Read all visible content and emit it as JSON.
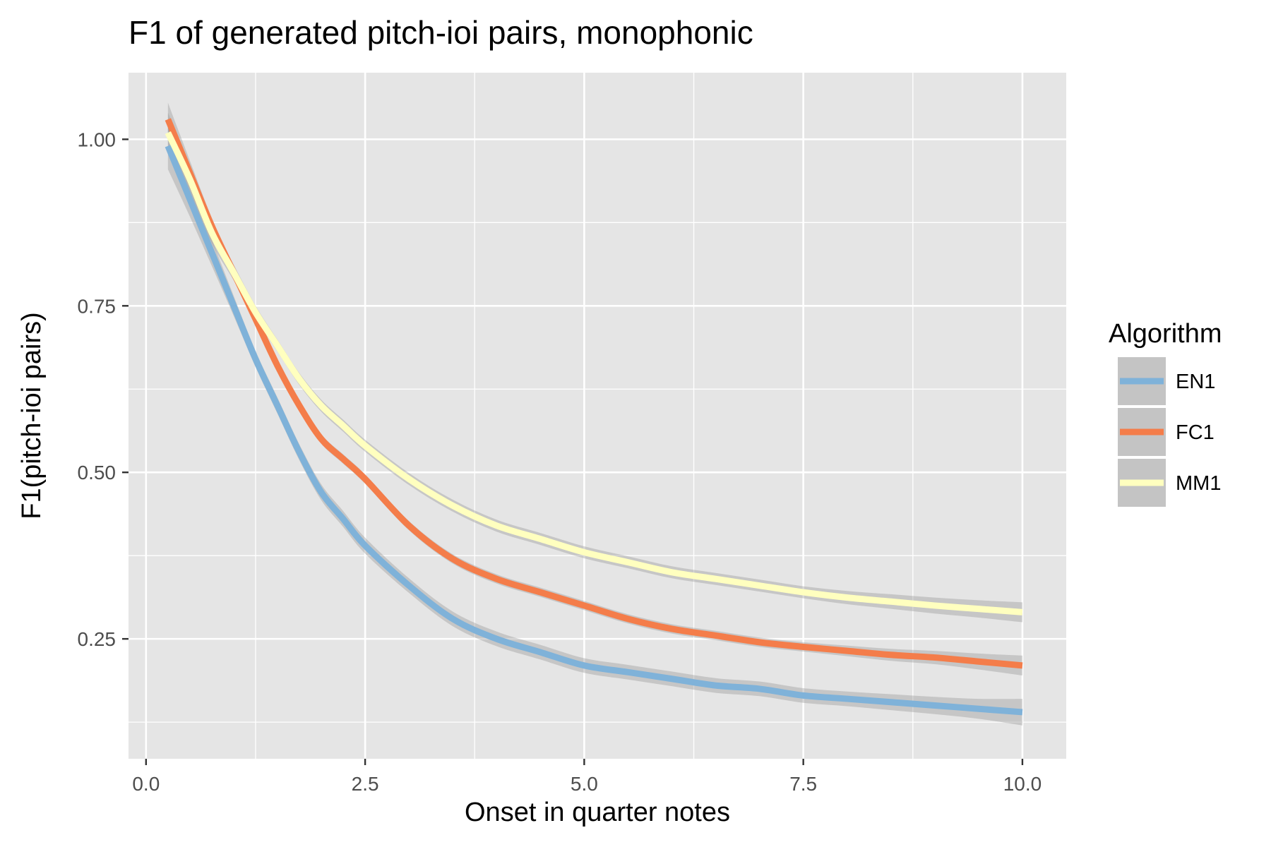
{
  "chart_data": {
    "type": "line",
    "title": "F1 of generated pitch-ioi pairs, monophonic",
    "xlabel": "Onset in quarter notes",
    "ylabel": "F1(pitch-ioi pairs)",
    "xlim": [
      -0.2,
      10.5
    ],
    "ylim": [
      0.07,
      1.1
    ],
    "x_ticks": [
      0.0,
      2.5,
      5.0,
      7.5,
      10.0
    ],
    "x_tick_labels": [
      "0.0",
      "2.5",
      "5.0",
      "7.5",
      "10.0"
    ],
    "y_ticks": [
      0.25,
      0.5,
      0.75,
      1.0
    ],
    "y_tick_labels": [
      "0.25",
      "0.50",
      "0.75",
      "1.00"
    ],
    "grid": true,
    "legend": {
      "title": "Algorithm",
      "position": "right"
    },
    "confidence_band": true,
    "x": [
      0.25,
      0.5,
      0.75,
      1.0,
      1.25,
      1.5,
      1.75,
      2.0,
      2.25,
      2.5,
      3.0,
      3.5,
      4.0,
      4.5,
      5.0,
      5.5,
      6.0,
      6.5,
      7.0,
      7.5,
      8.0,
      8.5,
      9.0,
      9.5,
      10.0
    ],
    "series": [
      {
        "name": "EN1",
        "color": "#7fb2d9",
        "values": [
          0.99,
          0.91,
          0.83,
          0.75,
          0.67,
          0.6,
          0.53,
          0.47,
          0.43,
          0.39,
          0.33,
          0.28,
          0.25,
          0.23,
          0.21,
          0.2,
          0.19,
          0.18,
          0.175,
          0.165,
          0.16,
          0.155,
          0.15,
          0.145,
          0.14
        ],
        "ci": [
          0.035,
          0.026,
          0.02,
          0.015,
          0.012,
          0.012,
          0.012,
          0.012,
          0.012,
          0.012,
          0.011,
          0.011,
          0.011,
          0.011,
          0.011,
          0.011,
          0.011,
          0.011,
          0.011,
          0.011,
          0.011,
          0.012,
          0.013,
          0.015,
          0.02
        ]
      },
      {
        "name": "FC1",
        "color": "#f47d4a",
        "values": [
          1.03,
          0.95,
          0.87,
          0.8,
          0.73,
          0.66,
          0.6,
          0.55,
          0.52,
          0.49,
          0.42,
          0.37,
          0.34,
          0.32,
          0.3,
          0.28,
          0.265,
          0.255,
          0.245,
          0.238,
          0.232,
          0.226,
          0.222,
          0.216,
          0.21
        ],
        "ci": [
          0.025,
          0.018,
          0.012,
          0.009,
          0.008,
          0.007,
          0.007,
          0.007,
          0.007,
          0.007,
          0.007,
          0.007,
          0.007,
          0.007,
          0.007,
          0.007,
          0.007,
          0.007,
          0.007,
          0.007,
          0.008,
          0.009,
          0.01,
          0.012,
          0.015
        ]
      },
      {
        "name": "MM1",
        "color": "#ffffbf",
        "values": [
          1.01,
          0.94,
          0.86,
          0.8,
          0.74,
          0.69,
          0.64,
          0.6,
          0.57,
          0.54,
          0.49,
          0.45,
          0.42,
          0.4,
          0.38,
          0.365,
          0.35,
          0.34,
          0.33,
          0.32,
          0.312,
          0.306,
          0.3,
          0.295,
          0.29
        ],
        "ci": [
          0.03,
          0.022,
          0.016,
          0.012,
          0.01,
          0.009,
          0.009,
          0.009,
          0.009,
          0.009,
          0.009,
          0.009,
          0.009,
          0.009,
          0.009,
          0.009,
          0.009,
          0.009,
          0.009,
          0.009,
          0.01,
          0.011,
          0.012,
          0.013,
          0.015
        ]
      }
    ]
  },
  "colors": {
    "panel_background": "#e5e5e5",
    "grid": "#ffffff",
    "confidence_band": "#999999",
    "legend_key_background": "#c4c4c4"
  }
}
